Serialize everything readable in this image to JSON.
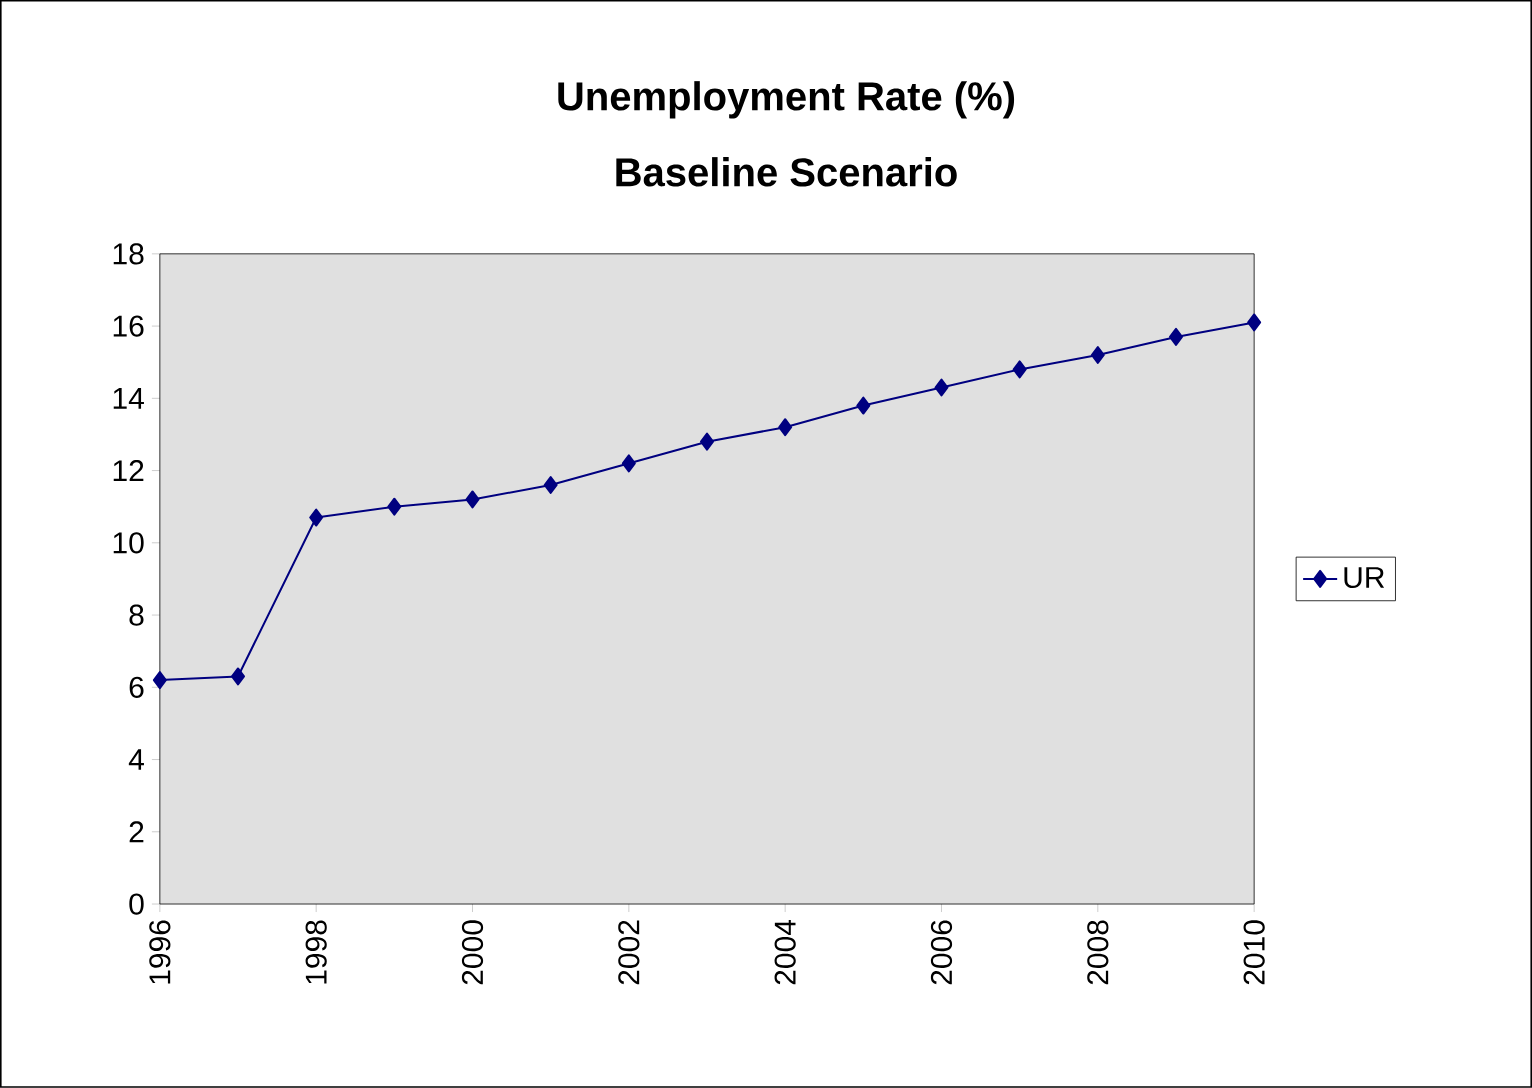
{
  "chart_data": {
    "type": "line",
    "title": "Unemployment Rate (%)",
    "subtitle": "Baseline Scenario",
    "x": [
      1996,
      1997,
      1998,
      1999,
      2000,
      2001,
      2002,
      2003,
      2004,
      2005,
      2006,
      2007,
      2008,
      2009,
      2010
    ],
    "series": [
      {
        "name": "UR",
        "color": "#000080",
        "values": [
          6.2,
          6.3,
          10.7,
          11.0,
          11.2,
          11.6,
          12.2,
          12.8,
          13.2,
          13.8,
          14.3,
          14.8,
          15.2,
          15.7,
          16.1
        ]
      }
    ],
    "xlim": [
      1996,
      2010
    ],
    "xticks": [
      1996,
      1998,
      2000,
      2002,
      2004,
      2006,
      2008,
      2010
    ],
    "ylim": [
      0,
      18
    ],
    "yticks": [
      0,
      2,
      4,
      6,
      8,
      10,
      12,
      14,
      16,
      18
    ],
    "legend": "right",
    "marker": "diamond",
    "line_style": "solid"
  }
}
